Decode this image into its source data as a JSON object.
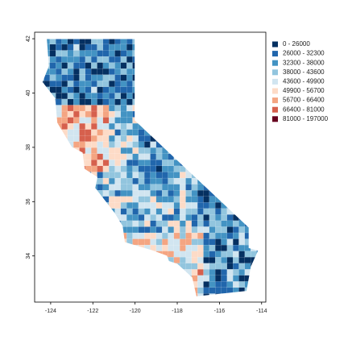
{
  "map": {
    "xlim": [
      -124.76,
      -113.8
    ],
    "ylim": [
      32.3,
      42.24
    ],
    "xticks": [
      -124,
      -122,
      -120,
      -118,
      -116,
      -114
    ],
    "yticks": [
      34,
      36,
      38,
      40,
      42
    ],
    "legend": [
      {
        "label": "0 - 26000",
        "color": "#053061"
      },
      {
        "label": "26000 - 32300",
        "color": "#2166ac"
      },
      {
        "label": "32300 - 38000",
        "color": "#4393c3"
      },
      {
        "label": "38000 - 43600",
        "color": "#92c5de"
      },
      {
        "label": "43600 - 49900",
        "color": "#d1e5f0"
      },
      {
        "label": "49900 - 56700",
        "color": "#fddbc7"
      },
      {
        "label": "56700 - 66400",
        "color": "#f4a582"
      },
      {
        "label": "66400 - 81000",
        "color": "#d6604d"
      },
      {
        "label": "81000 - 197000",
        "color": "#67001f"
      }
    ]
  }
}
